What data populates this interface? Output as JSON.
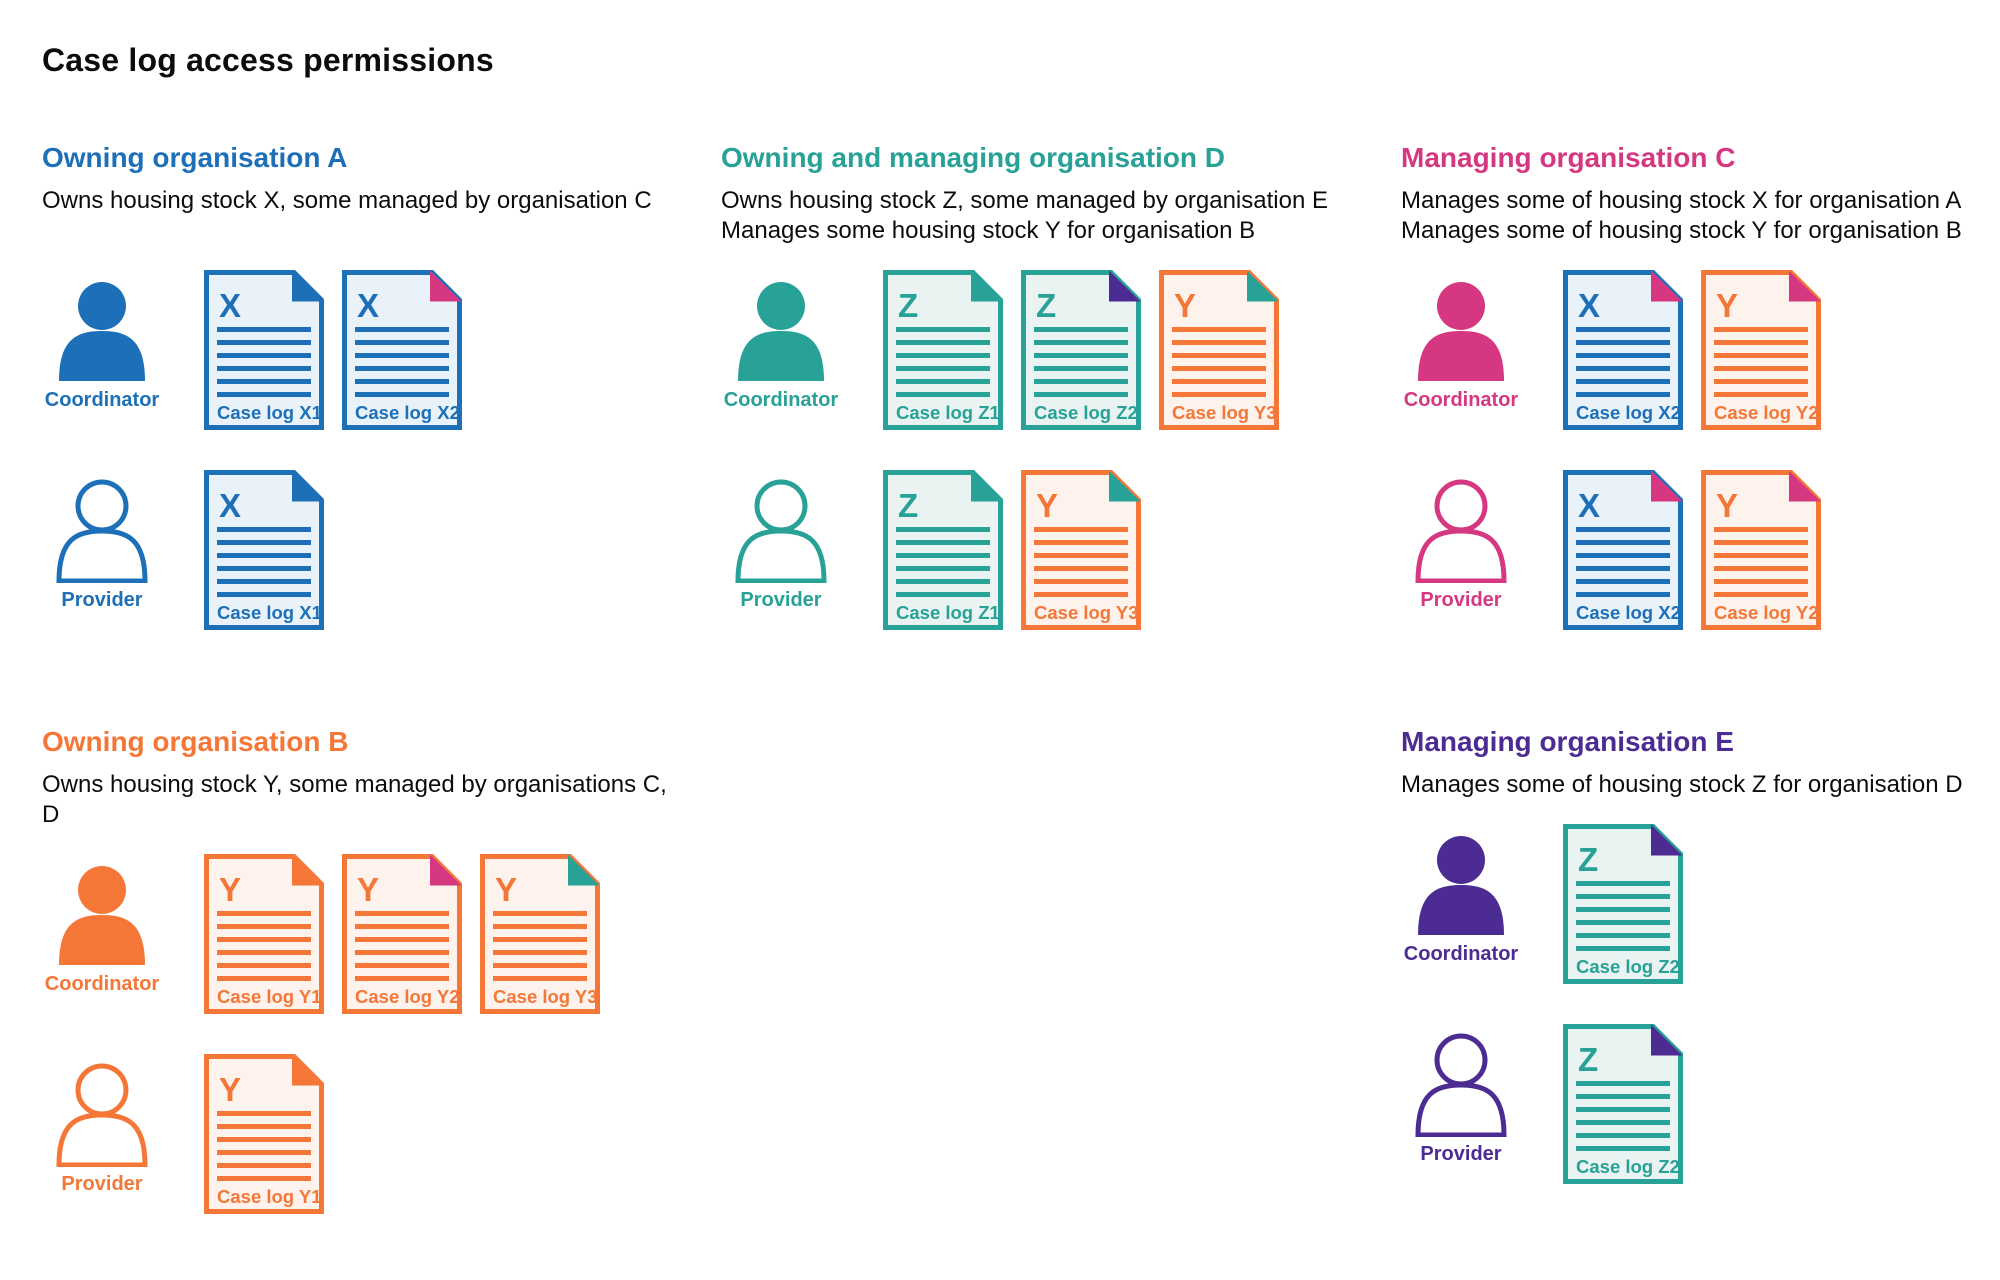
{
  "title": "Case log access permissions",
  "colors": {
    "blue": "#1d70b8",
    "teal": "#28a197",
    "pink": "#d53880",
    "orange": "#f47738",
    "purple": "#4c2c92",
    "text": "#0b0c0c"
  },
  "doc_backgrounds": {
    "blue": "#eaf2f9",
    "teal": "#e9f4f2",
    "orange": "#fdf2ec"
  },
  "sections": [
    {
      "id": "owning-organisation-a",
      "title": "Owning organisation A",
      "color": "blue",
      "description_lines": [
        "Owns housing stock X, some managed by organisation C"
      ],
      "roles": [
        {
          "label": "Coordinator",
          "person_style": "filled",
          "docs": [
            {
              "letter": "X",
              "label": "Case log X1",
              "color": "blue",
              "fold": "blue"
            },
            {
              "letter": "X",
              "label": "Case log X2",
              "color": "blue",
              "fold": "pink"
            }
          ]
        },
        {
          "label": "Provider",
          "person_style": "outline",
          "docs": [
            {
              "letter": "X",
              "label": "Case log X1",
              "color": "blue",
              "fold": "blue"
            }
          ]
        }
      ]
    },
    {
      "id": "owning-and-managing-organisation-d",
      "title": "Owning and managing organisation D",
      "color": "teal",
      "description_lines": [
        "Owns housing stock Z, some managed by organisation E",
        "Manages some housing stock Y for organisation B"
      ],
      "roles": [
        {
          "label": "Coordinator",
          "person_style": "filled",
          "docs": [
            {
              "letter": "Z",
              "label": "Case log Z1",
              "color": "teal",
              "fold": "teal"
            },
            {
              "letter": "Z",
              "label": "Case log Z2",
              "color": "teal",
              "fold": "purple"
            },
            {
              "letter": "Y",
              "label": "Case log Y3",
              "color": "orange",
              "fold": "teal"
            }
          ]
        },
        {
          "label": "Provider",
          "person_style": "outline",
          "docs": [
            {
              "letter": "Z",
              "label": "Case log Z1",
              "color": "teal",
              "fold": "teal"
            },
            {
              "letter": "Y",
              "label": "Case log Y3",
              "color": "orange",
              "fold": "teal"
            }
          ]
        }
      ]
    },
    {
      "id": "managing-organisation-c",
      "title": "Managing organisation C",
      "color": "pink",
      "description_lines": [
        "Manages some of housing stock X for organisation A",
        "Manages some of housing stock Y for organisation B"
      ],
      "roles": [
        {
          "label": "Coordinator",
          "person_style": "filled",
          "docs": [
            {
              "letter": "X",
              "label": "Case log X2",
              "color": "blue",
              "fold": "pink"
            },
            {
              "letter": "Y",
              "label": "Case log Y2",
              "color": "orange",
              "fold": "pink"
            }
          ]
        },
        {
          "label": "Provider",
          "person_style": "outline",
          "docs": [
            {
              "letter": "X",
              "label": "Case log X2",
              "color": "blue",
              "fold": "pink"
            },
            {
              "letter": "Y",
              "label": "Case log Y2",
              "color": "orange",
              "fold": "pink"
            }
          ]
        }
      ]
    },
    {
      "id": "owning-organisation-b",
      "title": "Owning organisation B",
      "color": "orange",
      "description_lines": [
        "Owns housing stock Y, some managed by organisations C, D"
      ],
      "roles": [
        {
          "label": "Coordinator",
          "person_style": "filled",
          "docs": [
            {
              "letter": "Y",
              "label": "Case log Y1",
              "color": "orange",
              "fold": "orange"
            },
            {
              "letter": "Y",
              "label": "Case log Y2",
              "color": "orange",
              "fold": "pink"
            },
            {
              "letter": "Y",
              "label": "Case log Y3",
              "color": "orange",
              "fold": "teal"
            }
          ]
        },
        {
          "label": "Provider",
          "person_style": "outline",
          "docs": [
            {
              "letter": "Y",
              "label": "Case log Y1",
              "color": "orange",
              "fold": "orange"
            }
          ]
        }
      ]
    },
    {
      "id": "managing-organisation-e",
      "title": "Managing organisation E",
      "color": "purple",
      "description_lines": [
        "Manages some of housing stock Z for organisation D"
      ],
      "roles": [
        {
          "label": "Coordinator",
          "person_style": "filled",
          "docs": [
            {
              "letter": "Z",
              "label": "Case log Z2",
              "color": "teal",
              "fold": "purple"
            }
          ]
        },
        {
          "label": "Provider",
          "person_style": "outline",
          "docs": [
            {
              "letter": "Z",
              "label": "Case log Z2",
              "color": "teal",
              "fold": "purple"
            }
          ]
        }
      ]
    }
  ]
}
